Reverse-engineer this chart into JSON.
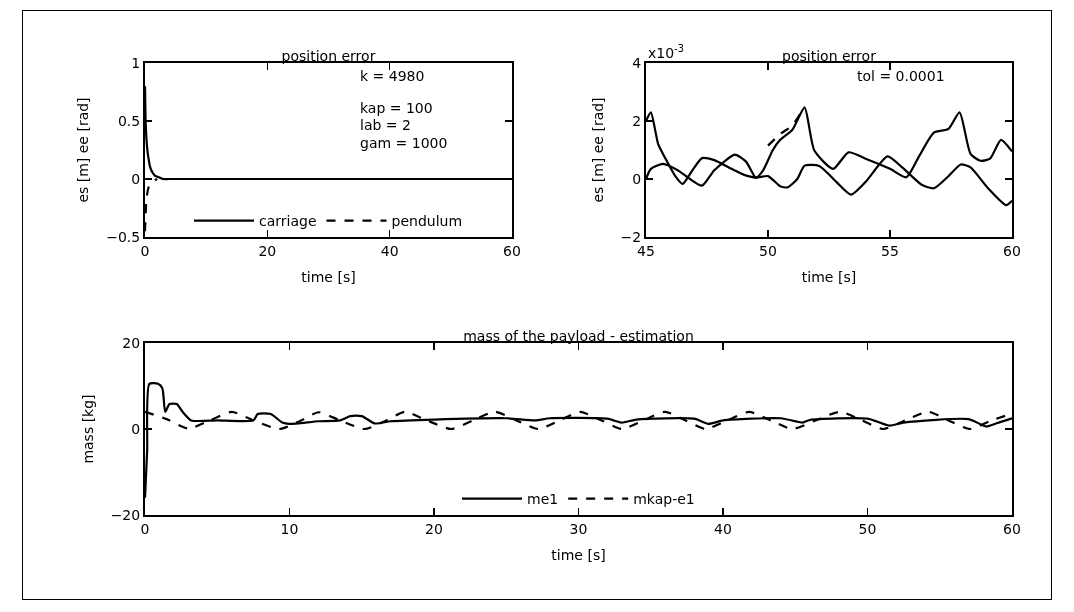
{
  "chart_data": [
    {
      "type": "line",
      "title": "position error",
      "xlabel": "time [s]",
      "ylabel": "es [m] ee [rad]",
      "xlim": [
        0,
        60
      ],
      "xticks": [
        0,
        20,
        40,
        60
      ],
      "ylim": [
        -0.5,
        1
      ],
      "yticks": [
        -0.5,
        0,
        0.5,
        1
      ],
      "grid": false,
      "legend": "bottom",
      "annotations": [
        "k = 4980",
        "kap = 100",
        "lab = 2",
        "gam = 1000"
      ],
      "series": [
        {
          "name": "carriage",
          "color": "#000000",
          "line_style": "solid",
          "x": [
            0,
            0.05,
            0.1,
            0.2,
            0.3,
            0.45,
            0.6,
            0.8,
            1,
            1.3,
            1.6,
            2,
            2.5,
            3,
            4,
            60
          ],
          "values": [
            0.8,
            0.65,
            0.5,
            0.38,
            0.3,
            0.22,
            0.17,
            0.11,
            0.08,
            0.05,
            0.03,
            0.02,
            0.01,
            0,
            0,
            0
          ]
        },
        {
          "name": "pendulum",
          "color": "#000000",
          "line_style": "dashed",
          "x": [
            0,
            0.05,
            0.1,
            0.2,
            0.3,
            0.45,
            0.6,
            0.8,
            1,
            1.3,
            1.6,
            2
          ],
          "values": [
            -0.45,
            -0.38,
            -0.3,
            -0.2,
            -0.15,
            -0.1,
            -0.07,
            -0.05,
            -0.03,
            -0.02,
            -0.01,
            0
          ]
        }
      ]
    },
    {
      "type": "line",
      "title": "position error",
      "xlabel": "time [s]",
      "ylabel": "es [m] ee [rad]",
      "xlim": [
        45,
        60
      ],
      "xticks": [
        45,
        50,
        55,
        60
      ],
      "ylim": [
        -2,
        4
      ],
      "yticks": [
        -2,
        0,
        2,
        4
      ],
      "grid": false,
      "annotations": [
        "x10$^{-3}$",
        "tol = 0.0001"
      ],
      "series": [
        {
          "color": "#000000",
          "line_style": "solid",
          "x": [
            45,
            45.2,
            45.5,
            45.8,
            46.2,
            46.5,
            46.9,
            47.3,
            47.8,
            48.5,
            49,
            49.5,
            50,
            50.5,
            50.8,
            51.2,
            51.5,
            52.1,
            52.8,
            53.4,
            54,
            54.9,
            55.5,
            56.3,
            56.8,
            57.4,
            57.9,
            58.3,
            59,
            59.76,
            60
          ],
          "values": [
            2.0,
            2.3,
            1.2,
            0.7,
            0.1,
            -0.17,
            0.3,
            0.72,
            0.65,
            0.35,
            0.15,
            0.05,
            0.1,
            -0.25,
            -0.29,
            0,
            0.46,
            0.45,
            -0.1,
            -0.54,
            -0.1,
            0.78,
            0.4,
            -0.2,
            -0.32,
            0.1,
            0.5,
            0.4,
            -0.3,
            -0.9,
            -0.75
          ]
        },
        {
          "color": "#000000",
          "line_style": "solid",
          "x": [
            45,
            45.2,
            45.7,
            46.3,
            46.8,
            47.3,
            47.8,
            48.64,
            49.1,
            49.5,
            49.8,
            50.2,
            50.5,
            51,
            51.5,
            51.9,
            52.67,
            53.3,
            54,
            55,
            55.67,
            56.2,
            56.8,
            57.4,
            57.85,
            58.3,
            58.7,
            59.1,
            59.55,
            60
          ],
          "values": [
            0,
            0.35,
            0.52,
            0.3,
            0,
            -0.23,
            0.3,
            0.84,
            0.6,
            0.05,
            0.3,
            1.0,
            1.35,
            1.7,
            2.46,
            0.98,
            0.35,
            0.92,
            0.7,
            0.35,
            0.06,
            0.8,
            1.6,
            1.73,
            2.3,
            0.87,
            0.63,
            0.7,
            1.35,
            0.95
          ]
        },
        {
          "color": "#000000",
          "line_style": "dashed",
          "x": [
            50,
            50.5,
            51,
            51.5
          ],
          "values": [
            1.15,
            1.55,
            1.85,
            2.5
          ]
        }
      ]
    },
    {
      "type": "line",
      "title": "mass of the payload - estimation",
      "xlabel": "time [s]",
      "ylabel": "mass [kg]",
      "xlim": [
        0,
        60
      ],
      "xticks": [
        0,
        10,
        20,
        30,
        40,
        50,
        60
      ],
      "ylim": [
        -20,
        20
      ],
      "yticks": [
        -20,
        0,
        20
      ],
      "grid": false,
      "legend": "bottom",
      "series": [
        {
          "name": "me1",
          "color": "#000000",
          "line_style": "solid",
          "x": [
            0,
            0.15,
            0.3,
            0.9,
            1.2,
            1.4,
            1.7,
            2.2,
            2.6,
            3.2,
            5,
            7.5,
            7.8,
            8.7,
            9.5,
            10,
            12,
            13.5,
            14.2,
            15,
            15.9,
            17,
            20,
            25,
            27,
            28,
            32,
            33,
            34,
            38,
            39,
            40,
            44,
            45.5,
            46,
            50,
            51.5,
            52.5,
            57,
            58.2,
            59,
            60
          ],
          "values": [
            -16,
            -5,
            10.5,
            10.5,
            9.5,
            4,
            5.8,
            5.8,
            4,
            2,
            2,
            2,
            3.5,
            3.5,
            1.5,
            1.2,
            1.8,
            2,
            3,
            3,
            1.3,
            1.8,
            2.2,
            2.5,
            2,
            2.5,
            2.4,
            1.5,
            2.2,
            2.4,
            1.2,
            2,
            2.5,
            1.5,
            2.1,
            2.4,
            0.8,
            1.5,
            2.3,
            0.6,
            1.4,
            2.5
          ]
        },
        {
          "name": "mkap-e1",
          "color": "#000000",
          "line_style": "dashed",
          "x": [
            0,
            1.5,
            3,
            4.5,
            6,
            7.5,
            9.3,
            10.8,
            12,
            13.5,
            15.2,
            16.7,
            18,
            19.5,
            21.2,
            22.7,
            24.2,
            25.7,
            27.2,
            28.7,
            30.1,
            31.6,
            33,
            34.5,
            36,
            37.4,
            38.8,
            40.3,
            41.8,
            43.3,
            44.8,
            46.4,
            48.1,
            49.6,
            51.1,
            52.6,
            54.2,
            55.6,
            57.1,
            58.6,
            60
          ],
          "values": [
            4,
            2.3,
            0.1,
            2,
            4,
            2,
            0,
            2,
            3.9,
            2,
            0,
            2,
            4,
            2,
            0,
            2,
            4,
            2,
            0,
            2,
            4,
            2,
            0,
            2,
            4,
            2,
            0,
            2,
            4,
            2,
            0,
            2,
            4,
            2,
            0,
            2,
            4,
            2,
            0,
            2,
            3.6
          ]
        }
      ]
    }
  ]
}
